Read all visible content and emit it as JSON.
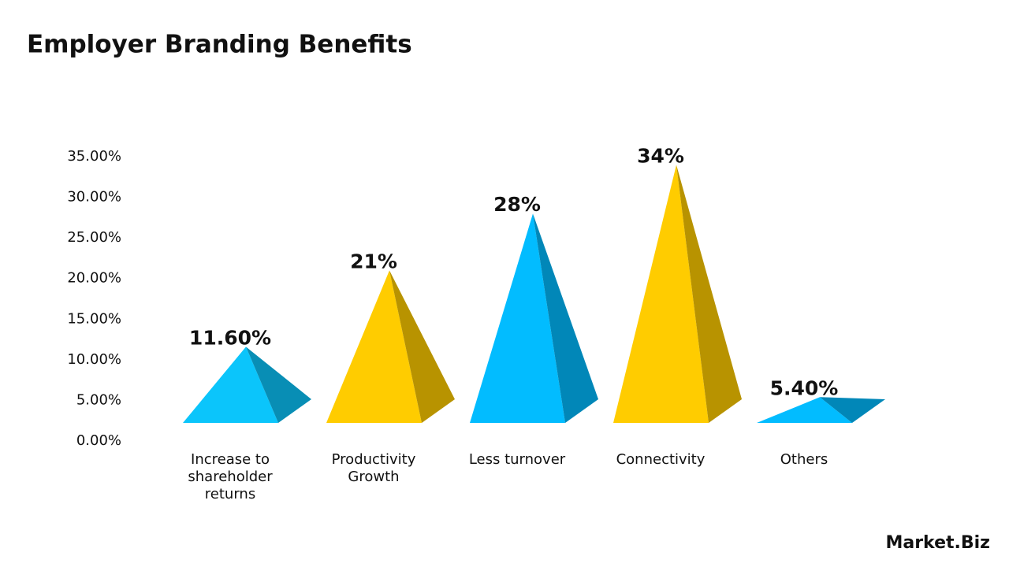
{
  "chart_data": {
    "type": "pyramid",
    "title": "Employer Branding Benefits",
    "categories": [
      "Increase to shareholder returns",
      "Productivity Growth",
      "Less turnover",
      "Connectivity",
      "Others"
    ],
    "values": [
      11.6,
      21,
      28,
      34,
      5.4
    ],
    "value_labels": [
      "11.60%",
      "21%",
      "28%",
      "34%",
      "5.40%"
    ],
    "colors": [
      "#0bc5fb",
      "#ffcc00",
      "#02bcff",
      "#ffcc00",
      "#02bcff"
    ],
    "ylim": [
      0,
      35
    ],
    "yticks": [
      {
        "value": 0,
        "label": "0.00%"
      },
      {
        "value": 5,
        "label": "5.00%"
      },
      {
        "value": 10,
        "label": "10.00%"
      },
      {
        "value": 15,
        "label": "15.00%"
      },
      {
        "value": 20,
        "label": "20.00%"
      },
      {
        "value": 25,
        "label": "25.00%"
      },
      {
        "value": 30,
        "label": "30.00%"
      },
      {
        "value": 35,
        "label": "35.00%"
      }
    ],
    "grid": false
  },
  "logo": "Market.Biz"
}
